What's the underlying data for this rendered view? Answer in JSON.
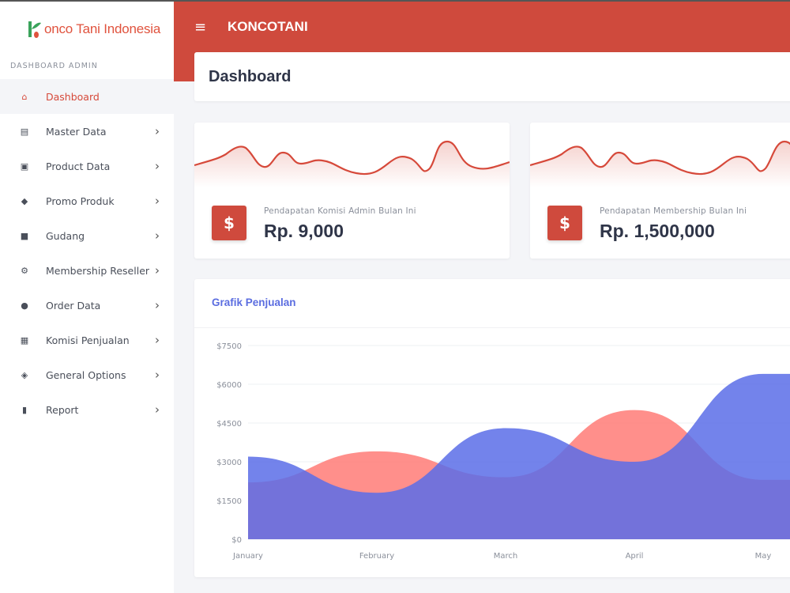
{
  "sidebar": {
    "logo_text": "onco Tani Indonesia",
    "section_label": "DASHBOARD ADMIN",
    "items": [
      {
        "label": "Dashboard",
        "icon": "home-icon",
        "active": true
      },
      {
        "label": "Master Data",
        "icon": "table-icon"
      },
      {
        "label": "Product Data",
        "icon": "boxes-icon"
      },
      {
        "label": "Promo Produk",
        "icon": "tag-icon"
      },
      {
        "label": "Gudang",
        "icon": "truck-icon"
      },
      {
        "label": "Membership Reseller",
        "icon": "gear-icon"
      },
      {
        "label": "Order Data",
        "icon": "circle-icon"
      },
      {
        "label": "Komisi Penjualan",
        "icon": "building-icon"
      },
      {
        "label": "General Options",
        "icon": "cube-icon"
      },
      {
        "label": "Report",
        "icon": "file-icon"
      }
    ]
  },
  "topbar": {
    "brand": "KONCOTANI",
    "menu_icon": "≡"
  },
  "page": {
    "title": "Dashboard"
  },
  "cards": [
    {
      "label": "Pendapatan Komisi Admin Bulan Ini",
      "value": "Rp. 9,000",
      "icon": "$"
    },
    {
      "label": "Pendapatan Membership Bulan Ini",
      "value": "Rp. 1,500,000",
      "icon": "$"
    }
  ],
  "colors": {
    "primary": "#cf4a3d",
    "accent": "#5b6de0",
    "series_red": "#ff7b77",
    "series_blue": "#5b6de8"
  },
  "chart_data": {
    "type": "area",
    "title": "Grafik Penjualan",
    "categories": [
      "January",
      "February",
      "March",
      "April",
      "May"
    ],
    "ylim": [
      0,
      7500
    ],
    "yticks": [
      "$0",
      "$1500",
      "$3000",
      "$4500",
      "$6000",
      "$7500"
    ],
    "series": [
      {
        "values": [
          2200,
          3400,
          2400,
          5000,
          2300
        ],
        "color": "#ff7b77"
      },
      {
        "values": [
          3200,
          1800,
          4300,
          3000,
          6400
        ],
        "color": "#5b6de8"
      }
    ],
    "grid": true
  }
}
